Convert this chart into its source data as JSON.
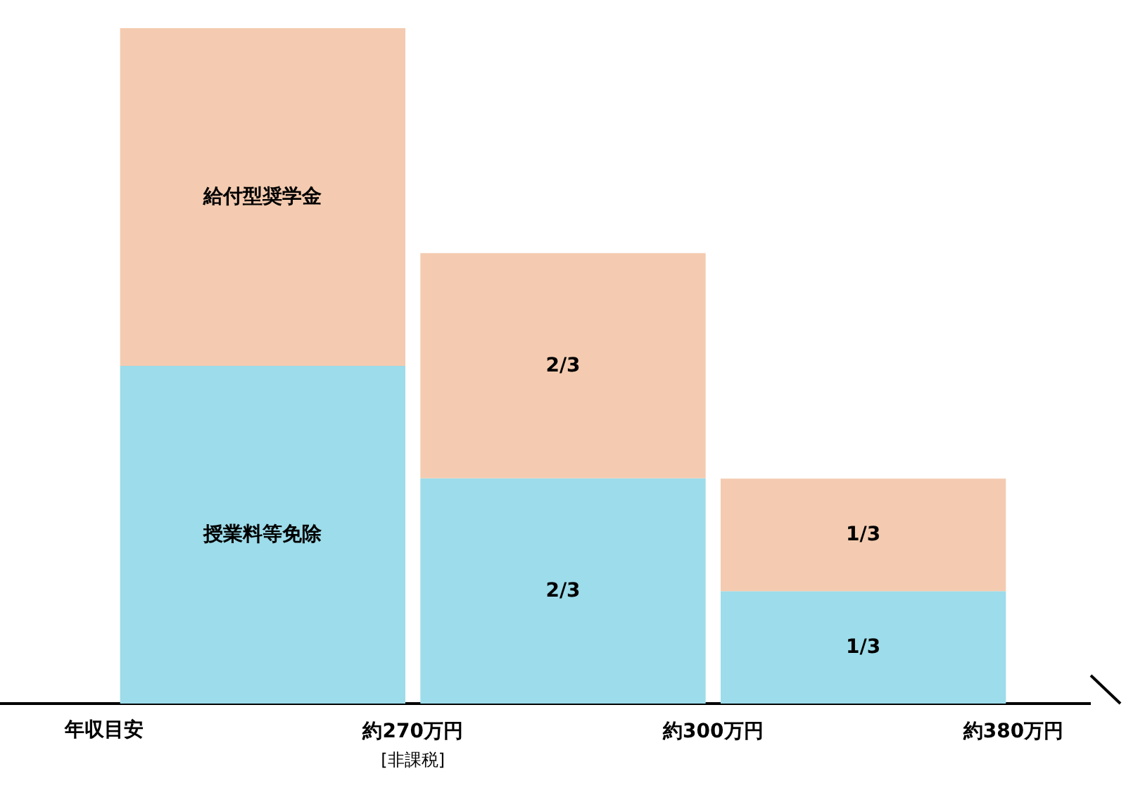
{
  "chart_data": {
    "type": "bar",
    "stacked": true,
    "legend": false,
    "ylim": [
      0,
      2
    ],
    "tick_labels": false,
    "categories": [
      null,
      null,
      null
    ],
    "xlabel": "年収目安",
    "annotations": [
      "約270万円\n[非課税]",
      "約300万円",
      "約380万円"
    ],
    "series": [
      {
        "name": "授業料等免除",
        "color": "#9ddcea",
        "values": [
          1,
          0.667,
          0.333
        ],
        "value_labels": [
          null,
          "2/3",
          "1/3"
        ]
      },
      {
        "name": "給付型奨学金",
        "color": "#f4cbb0",
        "values": [
          1,
          0.667,
          0.333
        ],
        "value_labels": [
          null,
          "2/3",
          "1/3"
        ]
      }
    ]
  }
}
